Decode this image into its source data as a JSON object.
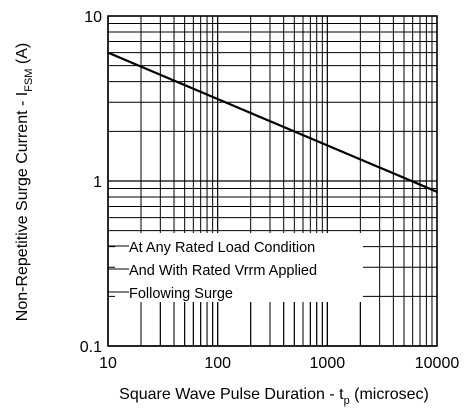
{
  "chart_data": {
    "type": "line",
    "title": "",
    "xlabel": "Square Wave Pulse Duration - t",
    "xlabel_sub": "p",
    "xlabel_tail": " (microsec)",
    "ylabel": "Non-Repetitive Surge Current - I",
    "ylabel_sub": "FSM",
    "ylabel_tail": " (A)",
    "x_scale": "log",
    "y_scale": "log",
    "xlim": [
      10,
      10000
    ],
    "ylim": [
      0.1,
      10
    ],
    "grid": true,
    "x_ticks": [
      "10",
      "100",
      "1000",
      "10000"
    ],
    "y_ticks": [
      "10",
      "1",
      "0.1"
    ],
    "x_tick_values": [
      10,
      100,
      1000,
      10000
    ],
    "y_tick_values": [
      10,
      1,
      0.1
    ],
    "series": [
      {
        "x": [
          10,
          10000
        ],
        "y": [
          6.0,
          0.86
        ]
      }
    ],
    "annotations": [
      "At Any Rated Load Condition",
      "And With Rated Vrrm Applied",
      "Following Surge"
    ]
  }
}
